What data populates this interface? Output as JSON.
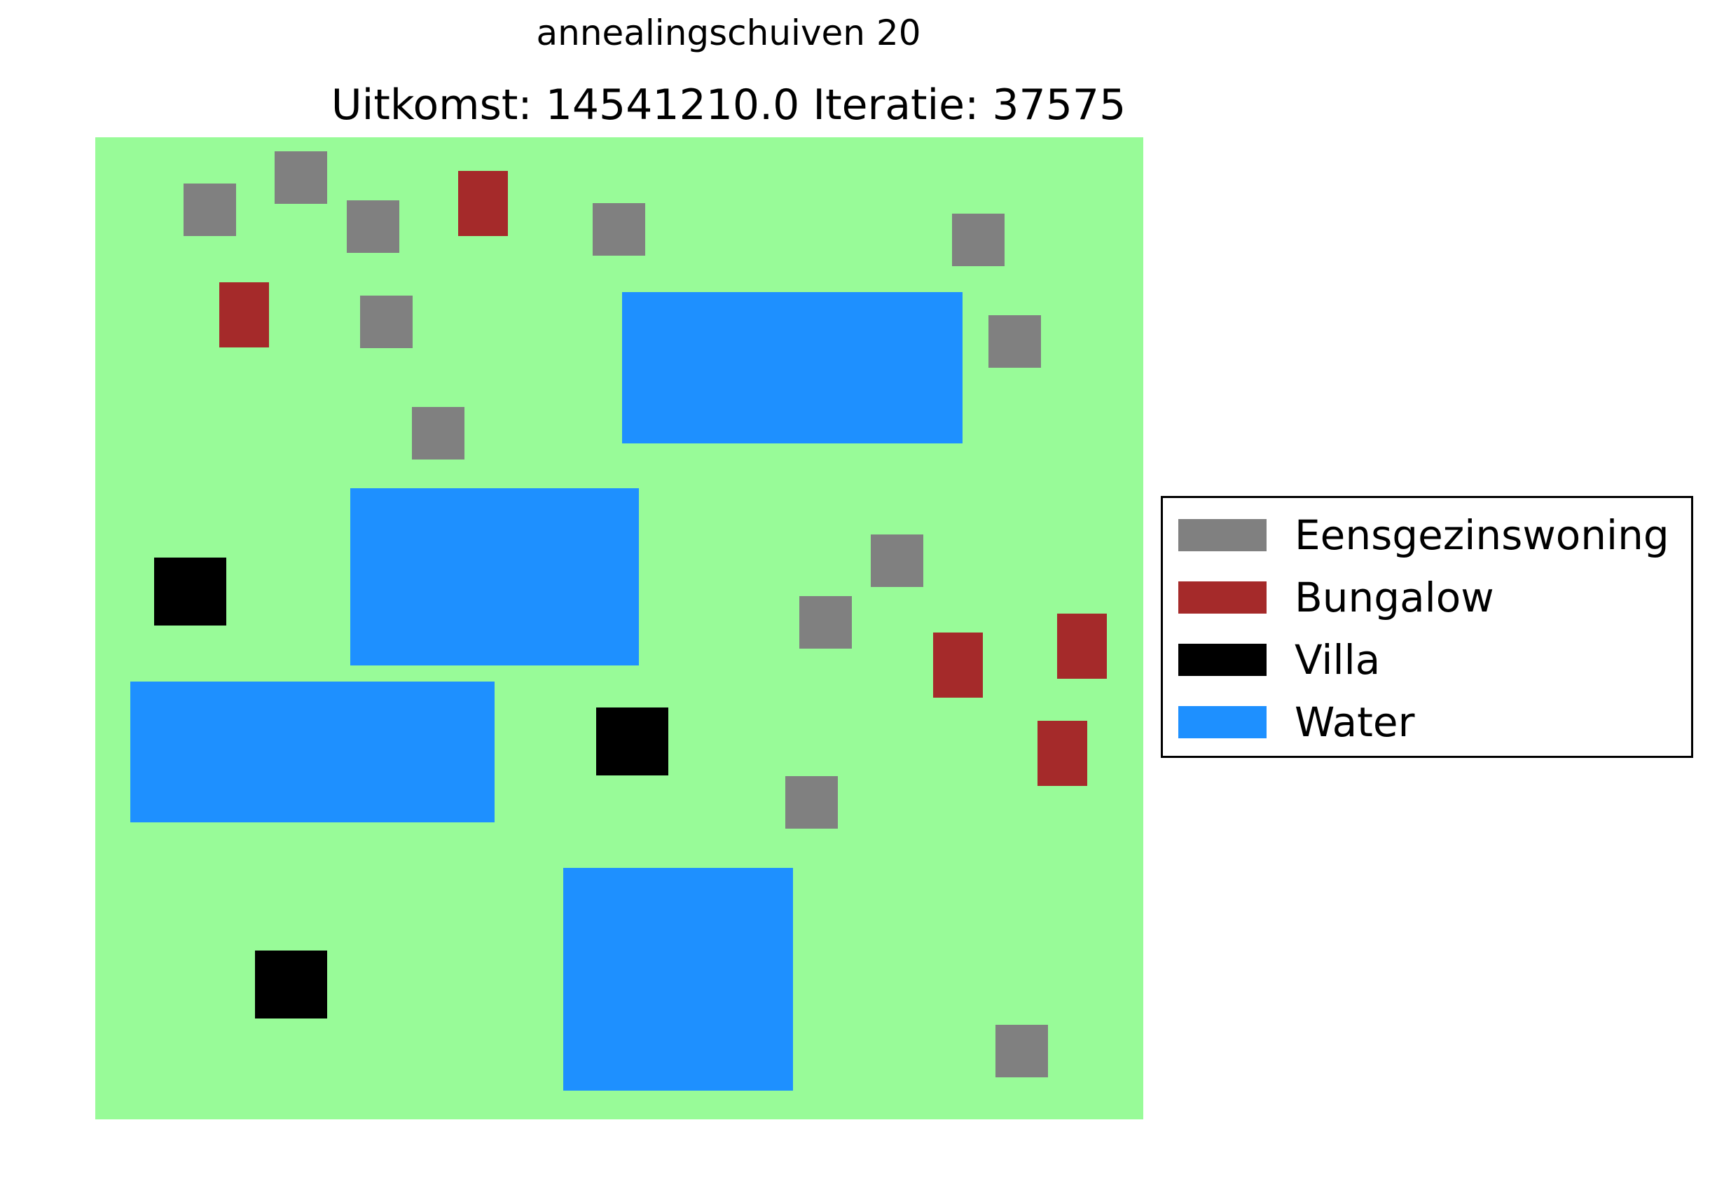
{
  "title": "annealingschuiven 20",
  "result_line": "Uitkomst: 14541210.0 Iteratie: 37575",
  "colors": {
    "land": "#98fb98",
    "Eensgezinswoning": "#808080",
    "Bungalow": "#a52a2a",
    "Villa": "#000000",
    "Water": "#1e90ff"
  },
  "legend": [
    {
      "label": "Eensgezinswoning",
      "type": "Eensgezinswoning"
    },
    {
      "label": "Bungalow",
      "type": "Bungalow"
    },
    {
      "label": "Villa",
      "type": "Villa"
    },
    {
      "label": "Water",
      "type": "Water"
    }
  ]
}
